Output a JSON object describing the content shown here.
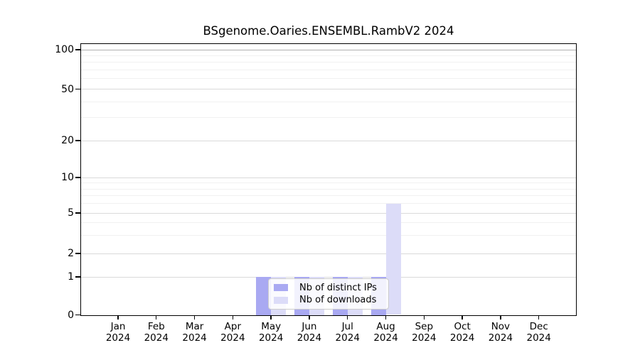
{
  "chart_data": {
    "type": "bar",
    "title": "BSgenome.Oaries.ENSEMBL.RambV2 2024",
    "categories": [
      "Jan",
      "Feb",
      "Mar",
      "Apr",
      "May",
      "Jun",
      "Jul",
      "Aug",
      "Sep",
      "Oct",
      "Nov",
      "Dec"
    ],
    "year": "2024",
    "series": [
      {
        "name": "Nb of distinct IPs",
        "color": "#a9a9f2",
        "values": [
          0,
          0,
          0,
          0,
          1,
          1,
          1,
          1,
          0,
          0,
          0,
          0
        ]
      },
      {
        "name": "Nb of downloads",
        "color": "#dcdcf8",
        "values": [
          0,
          0,
          0,
          0,
          1,
          1,
          1,
          6,
          0,
          0,
          0,
          0
        ]
      }
    ],
    "yscale": "log-like",
    "ylim": [
      0,
      100
    ],
    "yticks": [
      100,
      50,
      20,
      10,
      5,
      2,
      1,
      0
    ],
    "minor_yticks": [
      3,
      4,
      6,
      7,
      8,
      9,
      30,
      40,
      60,
      70,
      80,
      90
    ],
    "grid": true,
    "legend_position": "lower-center"
  },
  "colors": {
    "grid_major": "#dadada",
    "grid_minor": "#f1f1f1",
    "grid_top": "#b0b0b0",
    "axis": "#000000"
  }
}
